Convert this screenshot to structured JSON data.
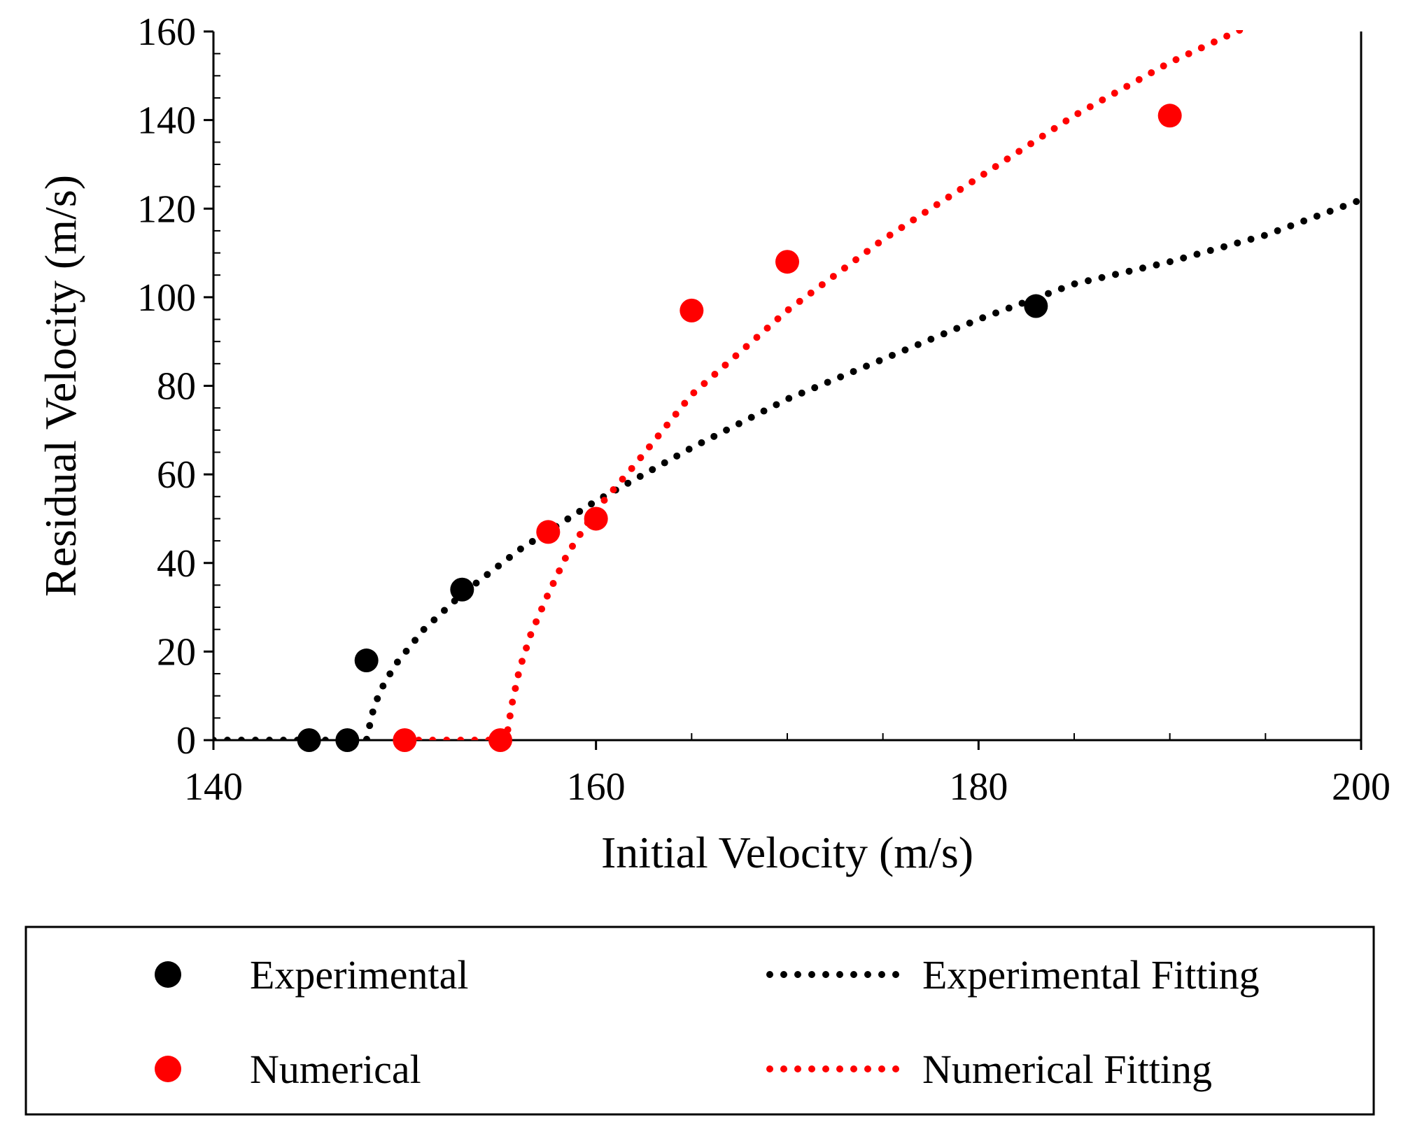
{
  "chart_data": {
    "type": "scatter",
    "xlabel": "Initial Velocity (m/s)",
    "ylabel": "Residual Velocity (m/s)",
    "xlim": [
      140,
      200
    ],
    "ylim": [
      0,
      160
    ],
    "xticks": [
      140,
      160,
      180,
      200
    ],
    "yticks": [
      0,
      20,
      40,
      60,
      80,
      100,
      120,
      140,
      160
    ],
    "grid": false,
    "legend_position": "bottom",
    "series": [
      {
        "name": "Experimental",
        "kind": "markers",
        "color": "#000000",
        "points": [
          {
            "x": 145,
            "y": 0
          },
          {
            "x": 147,
            "y": 0
          },
          {
            "x": 148,
            "y": 18
          },
          {
            "x": 153,
            "y": 34
          },
          {
            "x": 183,
            "y": 98
          }
        ]
      },
      {
        "name": "Numerical",
        "kind": "markers",
        "color": "#ff0000",
        "points": [
          {
            "x": 150,
            "y": 0
          },
          {
            "x": 155,
            "y": 0
          },
          {
            "x": 157.5,
            "y": 47
          },
          {
            "x": 160,
            "y": 50
          },
          {
            "x": 165,
            "y": 97
          },
          {
            "x": 170,
            "y": 108
          },
          {
            "x": 190,
            "y": 141
          }
        ]
      },
      {
        "name": "Experimental Fitting",
        "kind": "dotted-line",
        "color": "#000000",
        "points": [
          {
            "x": 140,
            "y": 0
          },
          {
            "x": 148,
            "y": 0
          },
          {
            "x": 148.3,
            "y": 6
          },
          {
            "x": 148.7,
            "y": 11
          },
          {
            "x": 149.5,
            "y": 17
          },
          {
            "x": 151,
            "y": 25
          },
          {
            "x": 153,
            "y": 33
          },
          {
            "x": 156,
            "y": 43
          },
          {
            "x": 160,
            "y": 54
          },
          {
            "x": 165,
            "y": 66
          },
          {
            "x": 170,
            "y": 77
          },
          {
            "x": 175,
            "y": 86
          },
          {
            "x": 180,
            "y": 95
          },
          {
            "x": 185,
            "y": 103
          },
          {
            "x": 190,
            "y": 108
          },
          {
            "x": 195,
            "y": 114
          },
          {
            "x": 200,
            "y": 122
          }
        ]
      },
      {
        "name": "Numerical Fitting",
        "kind": "dotted-line",
        "color": "#ff0000",
        "points": [
          {
            "x": 150,
            "y": 0
          },
          {
            "x": 155.3,
            "y": 0
          },
          {
            "x": 155.6,
            "y": 8
          },
          {
            "x": 156,
            "y": 16
          },
          {
            "x": 156.6,
            "y": 24
          },
          {
            "x": 157.5,
            "y": 33
          },
          {
            "x": 158.5,
            "y": 42
          },
          {
            "x": 160,
            "y": 52
          },
          {
            "x": 162,
            "y": 62
          },
          {
            "x": 165,
            "y": 78
          },
          {
            "x": 170,
            "y": 97
          },
          {
            "x": 175,
            "y": 113
          },
          {
            "x": 180,
            "y": 127
          },
          {
            "x": 185,
            "y": 141
          },
          {
            "x": 190,
            "y": 153
          },
          {
            "x": 194,
            "y": 161
          }
        ]
      }
    ]
  }
}
